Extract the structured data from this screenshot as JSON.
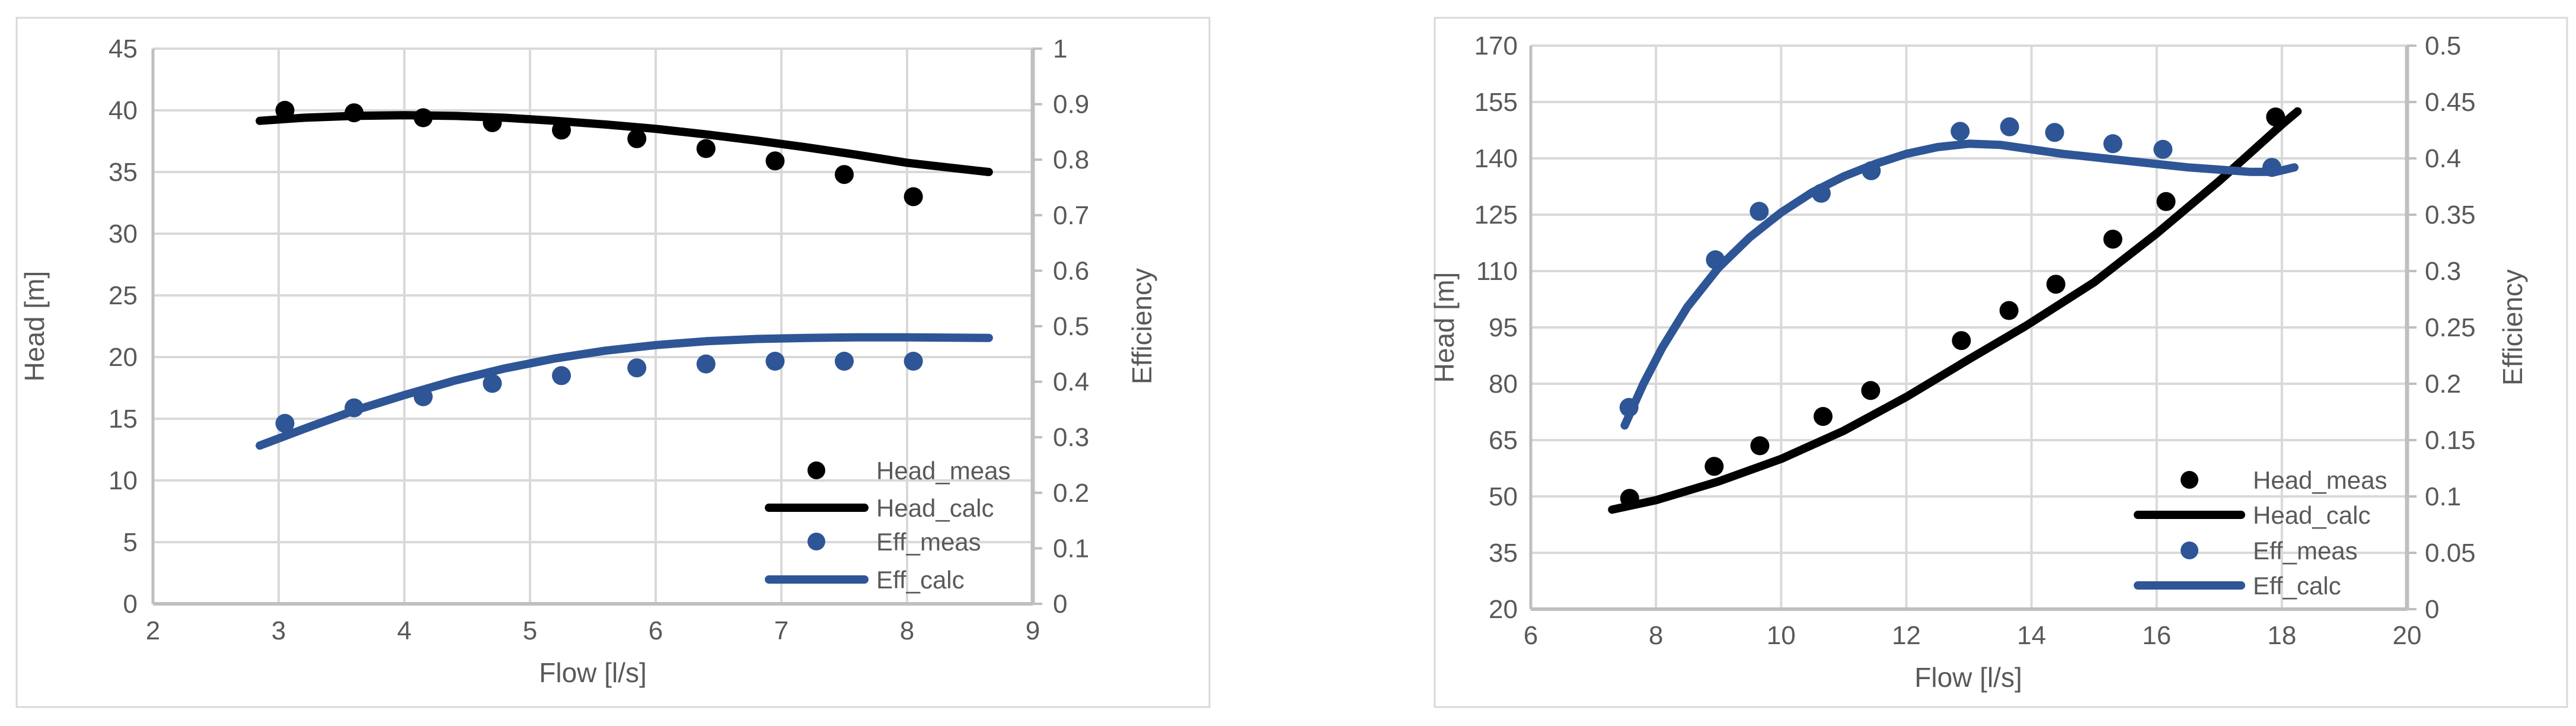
{
  "figure": {
    "background": "#ffffff",
    "panel_border_color": "#d9d9d9",
    "gridline_color": "#d9d9d9",
    "axis_line_color": "#bfbfbf",
    "label_color": "#595959",
    "head_color": "#000000",
    "eff_color": "#2e5596"
  },
  "chart_data": [
    {
      "type": "scatter+line",
      "title": "",
      "xlabel": "Flow [l/s]",
      "ylabel": "Head [m]",
      "y2label": "Efficiency",
      "xlim": [
        2,
        9
      ],
      "ylim": [
        0,
        45
      ],
      "y2lim": [
        0,
        1
      ],
      "grid": true,
      "legend_position": "inside-lower-right",
      "xticks": [
        "2",
        "3",
        "4",
        "5",
        "6",
        "7",
        "8",
        "9"
      ],
      "yticks": [
        "0",
        "5",
        "10",
        "15",
        "20",
        "25",
        "30",
        "35",
        "40",
        "45"
      ],
      "y2ticks": [
        "0",
        "0.1",
        "0.2",
        "0.3",
        "0.4",
        "0.5",
        "0.6",
        "0.7",
        "0.8",
        "0.9",
        "1"
      ],
      "series": [
        {
          "name": "Head_meas",
          "axis": "y1",
          "style": "scatter",
          "color": "#000000",
          "x": [
            3.05,
            3.6,
            4.15,
            4.7,
            5.25,
            5.85,
            6.4,
            6.95,
            7.5,
            8.05
          ],
          "y": [
            40.0,
            39.8,
            39.4,
            39.0,
            38.4,
            37.7,
            36.9,
            35.9,
            34.8,
            33.0
          ]
        },
        {
          "name": "Head_calc",
          "axis": "y1",
          "style": "line",
          "color": "#000000",
          "x": [
            2.85,
            3.2,
            3.6,
            4.0,
            4.4,
            4.8,
            5.2,
            5.6,
            6.0,
            6.4,
            6.8,
            7.2,
            7.6,
            8.0,
            8.3,
            8.65
          ],
          "y": [
            39.15,
            39.4,
            39.55,
            39.6,
            39.55,
            39.4,
            39.15,
            38.85,
            38.5,
            38.05,
            37.55,
            37.0,
            36.4,
            35.75,
            35.4,
            35.0
          ]
        },
        {
          "name": "Eff_meas",
          "axis": "y2",
          "style": "scatter",
          "color": "#2e5596",
          "x": [
            3.05,
            3.6,
            4.15,
            4.7,
            5.25,
            5.85,
            6.4,
            6.95,
            7.5,
            8.05
          ],
          "y": [
            0.325,
            0.353,
            0.373,
            0.397,
            0.411,
            0.425,
            0.432,
            0.437,
            0.437,
            0.437
          ]
        },
        {
          "name": "Eff_calc",
          "axis": "y2",
          "style": "line",
          "color": "#2e5596",
          "x": [
            2.85,
            3.2,
            3.6,
            4.0,
            4.4,
            4.8,
            5.2,
            5.6,
            6.0,
            6.4,
            6.8,
            7.2,
            7.6,
            8.0,
            8.65
          ],
          "y": [
            0.285,
            0.315,
            0.348,
            0.376,
            0.402,
            0.424,
            0.442,
            0.456,
            0.466,
            0.473,
            0.477,
            0.479,
            0.48,
            0.48,
            0.479
          ]
        }
      ]
    },
    {
      "type": "scatter+line",
      "title": "",
      "xlabel": "Flow [l/s]",
      "ylabel": "Head [m]",
      "y2label": "Efficiency",
      "xlim": [
        6,
        20
      ],
      "ylim": [
        20,
        170
      ],
      "y2lim": [
        0,
        0.5
      ],
      "grid": true,
      "legend_position": "inside-lower-right",
      "xticks": [
        "6",
        "8",
        "10",
        "12",
        "14",
        "16",
        "18",
        "20"
      ],
      "yticks": [
        "20",
        "35",
        "50",
        "65",
        "80",
        "95",
        "110",
        "125",
        "140",
        "155",
        "170"
      ],
      "y2ticks": [
        "0",
        "0.05",
        "0.1",
        "0.15",
        "0.2",
        "0.25",
        "0.3",
        "0.35",
        "0.4",
        "0.45",
        "0.5"
      ],
      "series": [
        {
          "name": "Head_meas",
          "axis": "y1",
          "style": "scatter",
          "color": "#000000",
          "x": [
            7.58,
            8.93,
            9.66,
            10.67,
            11.43,
            12.88,
            13.64,
            14.39,
            15.3,
            16.15,
            17.9
          ],
          "y": [
            49.5,
            58.0,
            63.5,
            71.3,
            78.2,
            91.5,
            99.5,
            106.5,
            118.5,
            128.5,
            151.0
          ]
        },
        {
          "name": "Head_calc",
          "axis": "y1",
          "style": "line",
          "color": "#000000",
          "x": [
            7.3,
            8.0,
            9.0,
            10.0,
            11.0,
            12.0,
            13.0,
            13.9,
            15.0,
            16.0,
            17.0,
            18.0,
            18.25
          ],
          "y": [
            46.5,
            49.0,
            54.0,
            60.0,
            67.5,
            76.5,
            86.5,
            95.3,
            107.0,
            120.0,
            134.0,
            149.0,
            152.5
          ]
        },
        {
          "name": "Eff_meas",
          "axis": "y2",
          "style": "scatter",
          "color": "#2e5596",
          "x": [
            7.57,
            8.95,
            9.65,
            10.64,
            11.44,
            12.86,
            13.65,
            14.37,
            15.3,
            16.1,
            17.84
          ],
          "y": [
            0.179,
            0.31,
            0.353,
            0.369,
            0.389,
            0.424,
            0.428,
            0.423,
            0.413,
            0.408,
            0.392
          ]
        },
        {
          "name": "Eff_calc",
          "axis": "y2",
          "style": "line",
          "color": "#2e5596",
          "x": [
            7.5,
            7.8,
            8.1,
            8.5,
            9.0,
            9.5,
            10.0,
            10.5,
            11.0,
            11.5,
            12.0,
            12.5,
            13.0,
            13.5,
            14.0,
            14.5,
            15.0,
            15.5,
            16.0,
            16.5,
            17.0,
            17.5,
            17.9,
            18.2
          ],
          "y": [
            0.163,
            0.2,
            0.232,
            0.268,
            0.303,
            0.33,
            0.352,
            0.37,
            0.384,
            0.395,
            0.404,
            0.41,
            0.413,
            0.412,
            0.408,
            0.404,
            0.401,
            0.398,
            0.395,
            0.392,
            0.39,
            0.388,
            0.388,
            0.392
          ]
        }
      ]
    }
  ]
}
